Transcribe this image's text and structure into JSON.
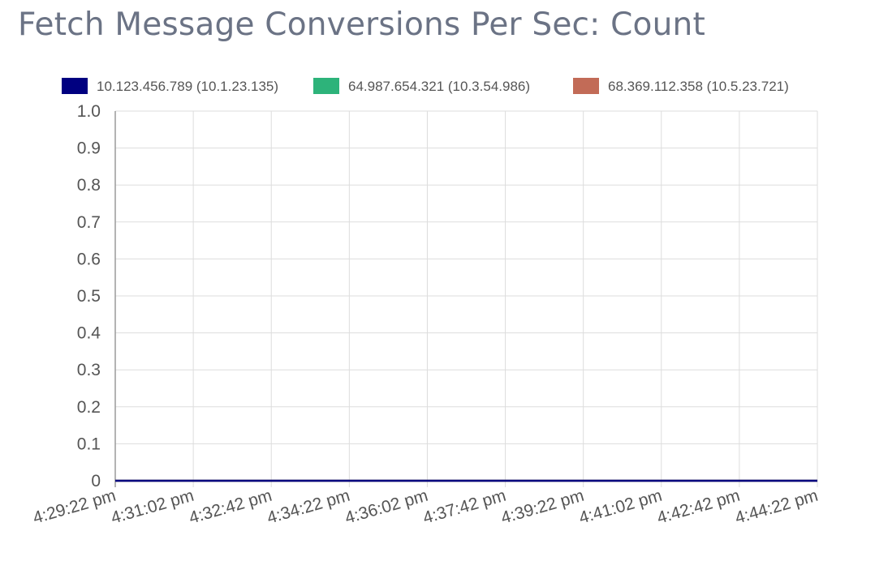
{
  "chart_data": {
    "type": "line",
    "title": "Fetch Message Conversions Per Sec: Count",
    "xlabel": "",
    "ylabel": "",
    "ylim": [
      0,
      1
    ],
    "y_ticks": [
      "0",
      "0.1",
      "0.2",
      "0.3",
      "0.4",
      "0.5",
      "0.6",
      "0.7",
      "0.8",
      "0.9",
      "1.0"
    ],
    "categories": [
      "4:29:22 pm",
      "4:31:02 pm",
      "4:32:42 pm",
      "4:34:22 pm",
      "4:36:02 pm",
      "4:37:42 pm",
      "4:39:22 pm",
      "4:41:02 pm",
      "4:42:42 pm",
      "4:44:22 pm"
    ],
    "grid": true,
    "legend_position": "top",
    "series": [
      {
        "name": "10.123.456.789 (10.1.23.135)",
        "color": "#000080",
        "values": [
          0,
          0,
          0,
          0,
          0,
          0,
          0,
          0,
          0,
          0
        ]
      },
      {
        "name": "64.987.654.321 (10.3.54.986)",
        "color": "#2db37a",
        "values": [
          0,
          0,
          0,
          0,
          0,
          0,
          0,
          0,
          0,
          0
        ]
      },
      {
        "name": "68.369.112.358 (10.5.23.721)",
        "color": "#c26b57",
        "values": [
          0,
          0,
          0,
          0,
          0,
          0,
          0,
          0,
          0,
          0
        ]
      }
    ]
  }
}
